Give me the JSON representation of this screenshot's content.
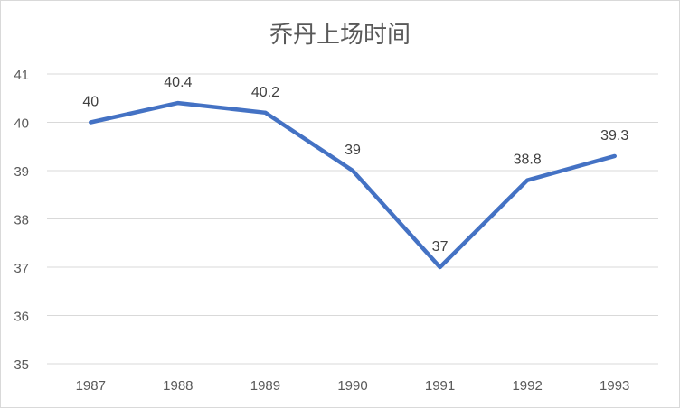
{
  "chart_data": {
    "type": "line",
    "title": "乔丹上场时间",
    "categories": [
      "1987",
      "1988",
      "1989",
      "1990",
      "1991",
      "1992",
      "1993"
    ],
    "series": [
      {
        "values": [
          40,
          40.4,
          40.2,
          39,
          37,
          38.8,
          39.3
        ],
        "color": "#4472C4"
      }
    ],
    "data_labels": [
      "40",
      "40.4",
      "40.2",
      "39",
      "37",
      "38.8",
      "39.3"
    ],
    "ylim": [
      35,
      41
    ],
    "yticks": [
      "35",
      "36",
      "37",
      "38",
      "39",
      "40",
      "41"
    ],
    "xlabel": "",
    "ylabel": "",
    "grid": true,
    "legend": "none"
  }
}
